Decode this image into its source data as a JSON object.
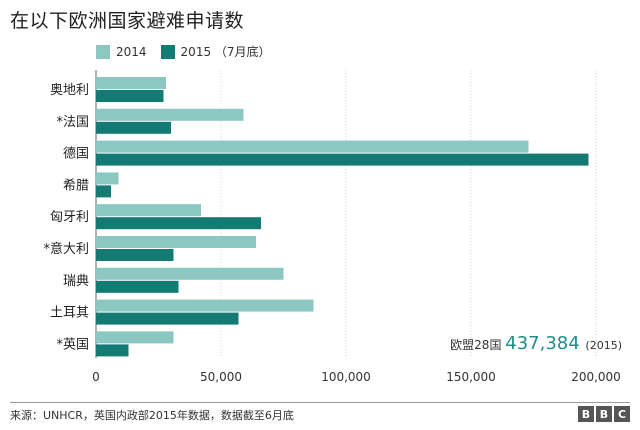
{
  "title": "在以下欧洲国家避难申请数",
  "legend": {
    "series_2014": "2014",
    "series_2015": "2015 （7月底）"
  },
  "colors": {
    "series_2014": "#8cc7c1",
    "series_2015": "#137a74",
    "total_value": "#1d8f87"
  },
  "chart_data": {
    "type": "bar",
    "orientation": "horizontal",
    "categories": [
      "奥地利",
      "*法国",
      "德国",
      "希腊",
      "匈牙利",
      "*意大利",
      "瑞典",
      "土耳其",
      "*英国"
    ],
    "series": [
      {
        "name": "2014",
        "values": [
          28000,
          59000,
          173000,
          9000,
          42000,
          64000,
          75000,
          87000,
          31000
        ]
      },
      {
        "name": "2015 （7月底）",
        "values": [
          27000,
          30000,
          197000,
          6000,
          66000,
          31000,
          33000,
          57000,
          13000
        ]
      }
    ],
    "xlim": [
      0,
      200000
    ],
    "x_ticks": [
      "0",
      "50,000",
      "100,000",
      "150,000",
      "200,000"
    ],
    "grid": true,
    "annotation": {
      "label": "欧盟28国",
      "value": "437,384",
      "note": "(2015)"
    }
  },
  "footer": {
    "source": "来源：UNHCR，英国内政部2015年数据，数据截至6月底",
    "logo": [
      "B",
      "B",
      "C"
    ]
  }
}
